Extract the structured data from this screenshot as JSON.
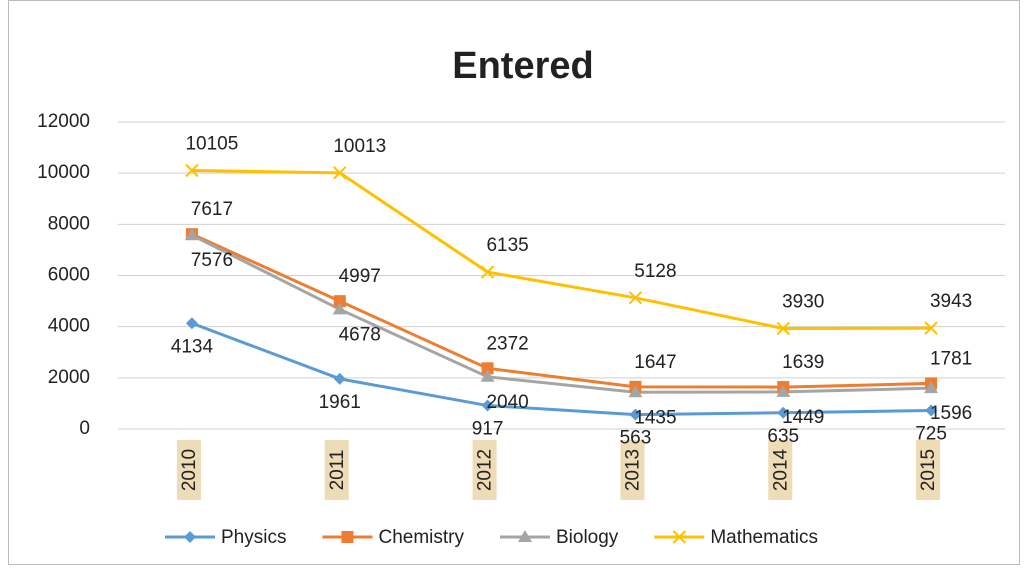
{
  "chart_data": {
    "type": "line",
    "title": "Entered",
    "categories": [
      "2010",
      "2011",
      "2012",
      "2013",
      "2014",
      "2015"
    ],
    "series": [
      {
        "name": "Physics",
        "color": "#5b9bd5",
        "marker": "diamond",
        "values": [
          4134,
          1961,
          917,
          563,
          635,
          725
        ]
      },
      {
        "name": "Chemistry",
        "color": "#ed7d31",
        "marker": "square",
        "values": [
          7617,
          4997,
          2372,
          1647,
          1639,
          1781
        ]
      },
      {
        "name": "Biology",
        "color": "#a5a5a5",
        "marker": "triangle",
        "values": [
          7576,
          4678,
          2040,
          1435,
          1449,
          1596
        ]
      },
      {
        "name": "Mathematics",
        "color": "#ffc000",
        "marker": "x",
        "values": [
          10105,
          10013,
          6135,
          5128,
          3930,
          3943
        ]
      }
    ],
    "ylim": [
      0,
      12000
    ],
    "yticks": [
      0,
      2000,
      4000,
      6000,
      8000,
      10000,
      12000
    ],
    "grid": true,
    "legend": "bottom"
  }
}
